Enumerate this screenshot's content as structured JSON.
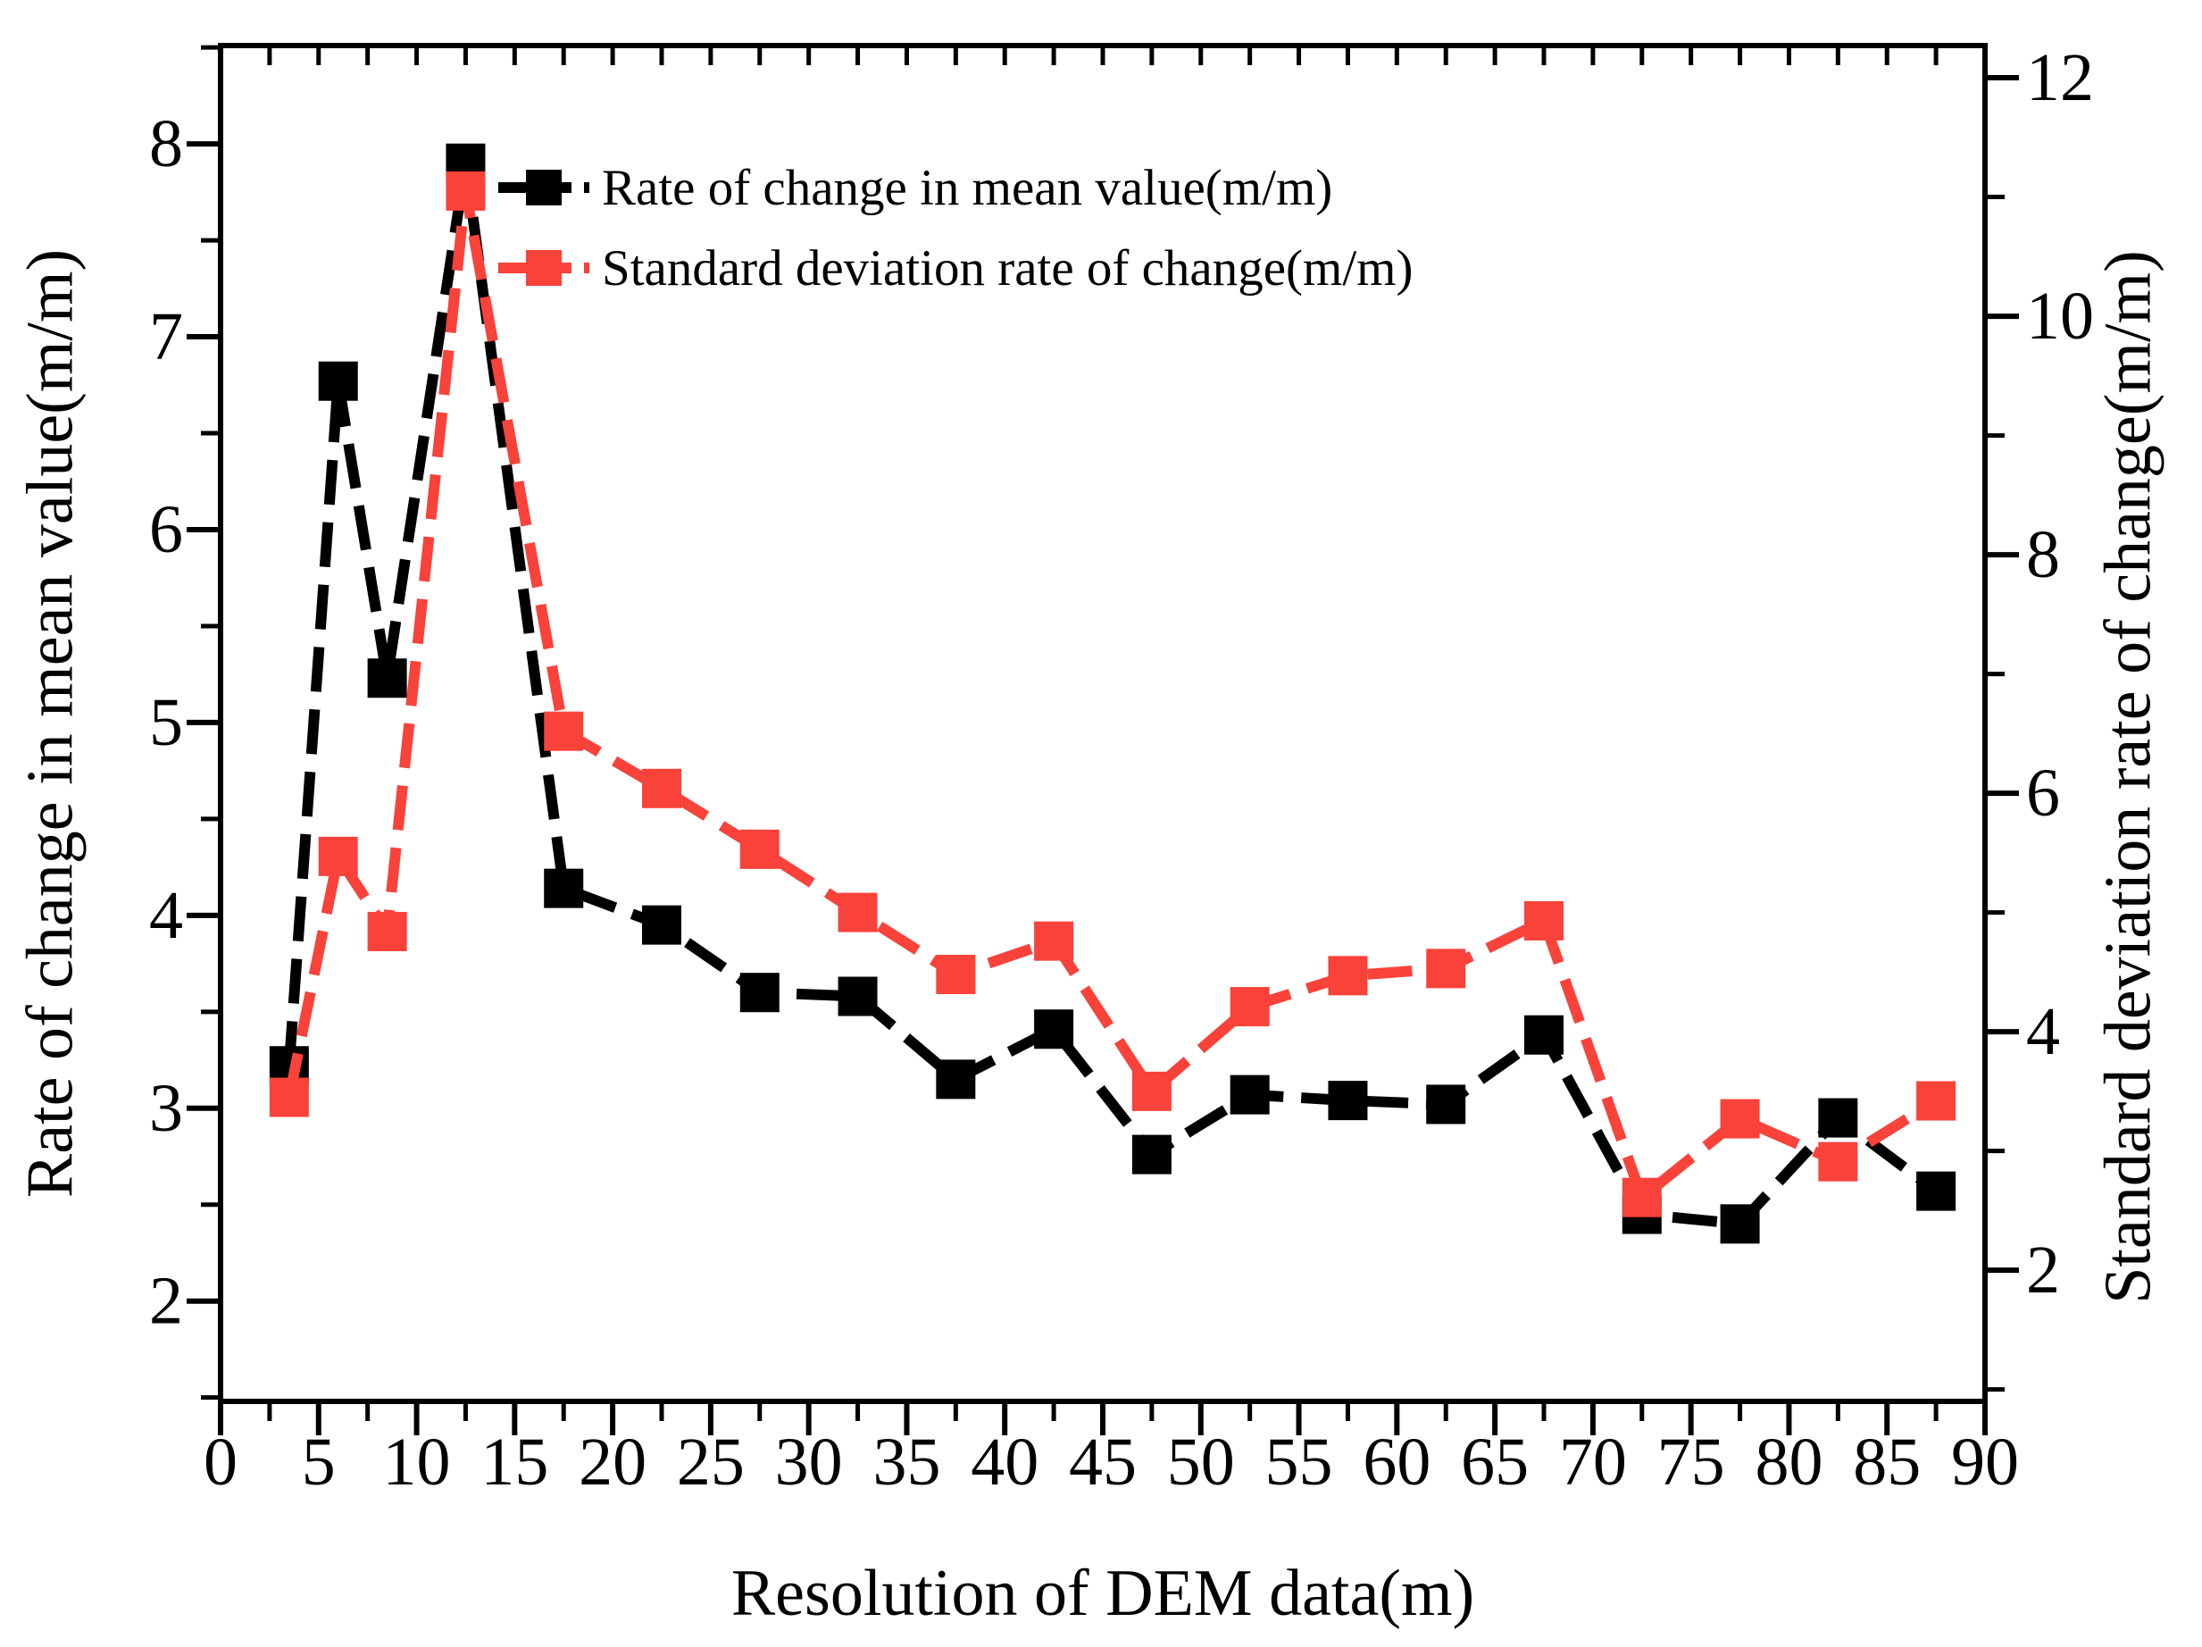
{
  "chart_data": {
    "type": "line",
    "title": "",
    "xlabel": "Resolution of DEM data(m)",
    "ylabel_left": "Rate of change in mean value(m/m)",
    "ylabel_right": "Standard deviation rate of change(m/m)",
    "x": [
      3.5,
      6,
      8.5,
      12.5,
      17.5,
      22.5,
      27.5,
      32.5,
      37.5,
      42.5,
      47.5,
      52.5,
      57.5,
      62.5,
      67.5,
      72.5,
      77.5,
      82.5,
      87.5
    ],
    "series": [
      {
        "name": "Rate of change in mean value(m/m)",
        "axis": "left",
        "color": "#000000",
        "marker": "square",
        "values": [
          3.22,
          6.77,
          5.23,
          7.9,
          4.14,
          3.95,
          3.6,
          3.58,
          3.15,
          3.41,
          2.76,
          3.07,
          3.04,
          3.02,
          3.38,
          2.45,
          2.4,
          2.95,
          2.57
        ]
      },
      {
        "name": "Standard deviation rate of change(m/m)",
        "axis": "right",
        "color": "#f9423a",
        "marker": "square",
        "values": [
          3.45,
          5.47,
          4.84,
          11.05,
          6.52,
          6.04,
          5.53,
          5.0,
          4.48,
          4.76,
          3.5,
          4.21,
          4.47,
          4.53,
          4.93,
          2.61,
          3.27,
          2.91,
          3.42
        ]
      }
    ],
    "x_axis": {
      "min": 0,
      "max": 90,
      "major_tick_step": 5,
      "minor_tick_step": 2.5,
      "tick_labels": [
        "0",
        "5",
        "10",
        "15",
        "20",
        "25",
        "30",
        "35",
        "40",
        "45",
        "50",
        "55",
        "60",
        "65",
        "70",
        "75",
        "80",
        "85",
        "90"
      ]
    },
    "left_axis": {
      "value_at_top": 8.51,
      "value_at_bottom": 1.48,
      "major_ticks": [
        2,
        3,
        4,
        5,
        6,
        7,
        8
      ],
      "minor_tick_step": 0.5
    },
    "right_axis": {
      "value_at_top": 12.27,
      "value_at_bottom": 0.9,
      "major_ticks": [
        2,
        4,
        6,
        8,
        10,
        12
      ],
      "minor_tick_step": 1
    },
    "grid": false,
    "legend_position": "top-inside-left",
    "legend": {
      "entries": [
        {
          "label": "Rate of change in mean value(m/m)",
          "color": "#000000"
        },
        {
          "label": "Standard deviation rate of change(m/m)",
          "color": "#f9423a"
        }
      ]
    }
  },
  "colors": {
    "background": "#ffffff",
    "frame": "#000000",
    "series_black": "#000000",
    "series_red": "#f9423a"
  }
}
